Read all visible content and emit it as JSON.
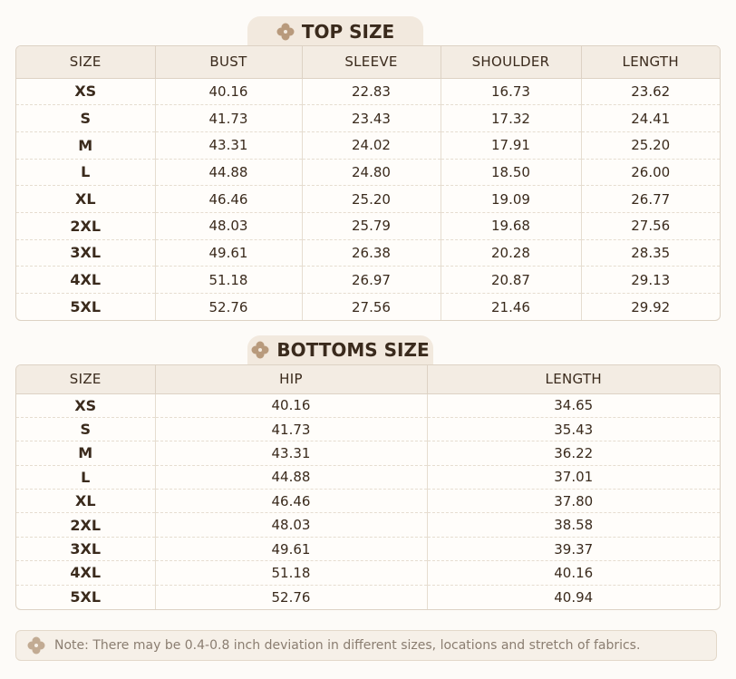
{
  "top_size": {
    "title": "TOP SIZE",
    "headers": [
      "SIZE",
      "BUST",
      "SLEEVE",
      "SHOULDER",
      "LENGTH"
    ],
    "rows": [
      [
        "XS",
        "40.16",
        "22.83",
        "16.73",
        "23.62"
      ],
      [
        "S",
        "41.73",
        "23.43",
        "17.32",
        "24.41"
      ],
      [
        "M",
        "43.31",
        "24.02",
        "17.91",
        "25.20"
      ],
      [
        "L",
        "44.88",
        "24.80",
        "18.50",
        "26.00"
      ],
      [
        "XL",
        "46.46",
        "25.20",
        "19.09",
        "26.77"
      ],
      [
        "2XL",
        "48.03",
        "25.79",
        "19.68",
        "27.56"
      ],
      [
        "3XL",
        "49.61",
        "26.38",
        "20.28",
        "28.35"
      ],
      [
        "4XL",
        "51.18",
        "26.97",
        "20.87",
        "29.13"
      ],
      [
        "5XL",
        "52.76",
        "27.56",
        "21.46",
        "29.92"
      ]
    ]
  },
  "bottoms_size": {
    "title": "BOTTOMS SIZE",
    "headers": [
      "SIZE",
      "HIP",
      "LENGTH"
    ],
    "rows": [
      [
        "XS",
        "40.16",
        "34.65"
      ],
      [
        "S",
        "41.73",
        "35.43"
      ],
      [
        "M",
        "43.31",
        "36.22"
      ],
      [
        "L",
        "44.88",
        "37.01"
      ],
      [
        "XL",
        "46.46",
        "37.80"
      ],
      [
        "2XL",
        "48.03",
        "38.58"
      ],
      [
        "3XL",
        "49.61",
        "39.37"
      ],
      [
        "4XL",
        "51.18",
        "40.16"
      ],
      [
        "5XL",
        "52.76",
        "40.94"
      ]
    ]
  },
  "note": {
    "label": "Note:",
    "text": "There may be 0.4-0.8 inch deviation in different sizes, locations and stretch of fabrics."
  }
}
